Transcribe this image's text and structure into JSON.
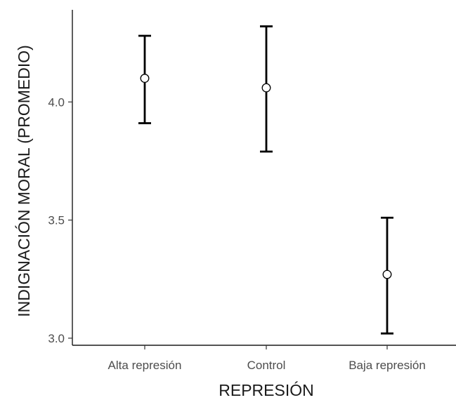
{
  "chart_data": {
    "type": "scatter",
    "subtype": "point-with-error-bars",
    "title": "",
    "xlabel": "REPRESIÓN",
    "ylabel": "INDIGNACIÓN MORAL (PROMEDIO)",
    "categories": [
      "Alta represión",
      "Control",
      "Baja represión"
    ],
    "values": [
      4.1,
      4.06,
      3.27
    ],
    "error_low": [
      3.91,
      3.79,
      3.02
    ],
    "error_high": [
      4.28,
      4.32,
      3.51
    ],
    "y_ticks": [
      3.0,
      3.5,
      4.0
    ],
    "y_tick_labels": [
      "3.0",
      "3.5",
      "4.0"
    ],
    "ylim": [
      2.97,
      4.39
    ],
    "grid": false,
    "legend": "none",
    "colors": {
      "point_fill": "#ffffff",
      "point_stroke": "#000000",
      "error_bar": "#000000",
      "axis": "#1a1a1a",
      "tick_label": "#4d4d4d"
    }
  }
}
